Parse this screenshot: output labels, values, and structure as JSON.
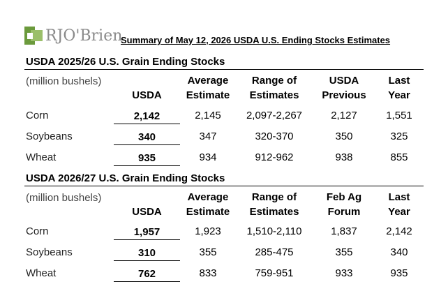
{
  "logo": {
    "text": "RJO'Brien",
    "colors": {
      "dark_green": "#6b9a3c",
      "light_green": "#9bbf6a",
      "text_gray": "#8a8a8a"
    }
  },
  "summary_title": "Summary of May 12, 2026 USDA U.S. Ending Stocks Estimates",
  "sections": [
    {
      "title": "USDA 2025/26 U.S. Grain Ending Stocks",
      "units": "(million bushels)",
      "headers": {
        "usda": "USDA",
        "avg_1": "Average",
        "avg_2": "Estimate",
        "range_1": "Range of",
        "range_2": "Estimates",
        "prev_1": "USDA",
        "prev_2": "Previous",
        "last_1": "Last",
        "last_2": "Year"
      },
      "rows": [
        {
          "label": "Corn",
          "usda": "2,142",
          "avg": "2,145",
          "range": "2,097-2,267",
          "prev": "2,127",
          "last": "1,551"
        },
        {
          "label": "Soybeans",
          "usda": "340",
          "avg": "347",
          "range": "320-370",
          "prev": "350",
          "last": "325"
        },
        {
          "label": "Wheat",
          "usda": "935",
          "avg": "934",
          "range": "912-962",
          "prev": "938",
          "last": "855"
        }
      ]
    },
    {
      "title": "USDA 2026/27 U.S. Grain Ending Stocks",
      "units": "(million bushels)",
      "headers": {
        "usda": "USDA",
        "avg_1": "Average",
        "avg_2": "Estimate",
        "range_1": "Range of",
        "range_2": "Estimates",
        "prev_1": "Feb Ag",
        "prev_2": "Forum",
        "last_1": "Last",
        "last_2": "Year"
      },
      "rows": [
        {
          "label": "Corn",
          "usda": "1,957",
          "avg": "1,923",
          "range": "1,510-2,110",
          "prev": "1,837",
          "last": "2,142"
        },
        {
          "label": "Soybeans",
          "usda": "310",
          "avg": "355",
          "range": "285-475",
          "prev": "355",
          "last": "340"
        },
        {
          "label": "Wheat",
          "usda": "762",
          "avg": "833",
          "range": "759-951",
          "prev": "933",
          "last": "935"
        }
      ]
    }
  ]
}
